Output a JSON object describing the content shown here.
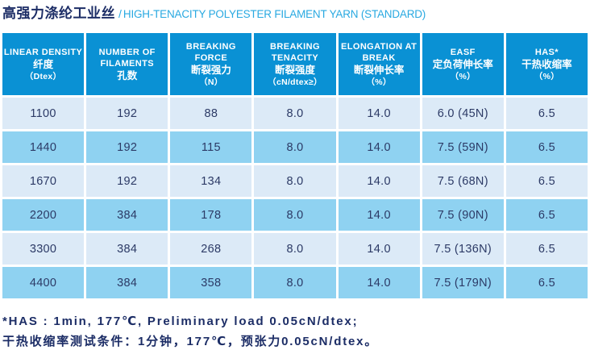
{
  "title": {
    "zh": "高强力涤纶工业丝",
    "separator": "/",
    "en": "HIGH-TENACITY POLYESTER FILAMENT YARN (STANDARD)"
  },
  "colors": {
    "header_bg": "#0a91d4",
    "row_light": "#dceaf7",
    "row_medium": "#8fd2f1",
    "cell_text": "#2c3a66",
    "title_zh": "#1c2d66",
    "title_en": "#29a9e1",
    "footnote": "#1c2d66",
    "page_bg": "#ffffff"
  },
  "table": {
    "headers": [
      {
        "en": "LINEAR DENSITY",
        "zh": "纤度",
        "unit": "（Dtex）"
      },
      {
        "en": "NUMBER OF FILAMENTS",
        "zh": "孔数",
        "unit": ""
      },
      {
        "en": "BREAKING FORCE",
        "zh": "断裂强力",
        "unit": "（N）"
      },
      {
        "en": "BREAKING TENACITY",
        "zh": "断裂强度",
        "unit": "（cN/dtex≥）"
      },
      {
        "en": "ELONGATION AT BREAK",
        "zh": "断裂伸长率",
        "unit": "（%）"
      },
      {
        "en": "EASF",
        "zh": "定负荷伸长率",
        "unit": "（%）"
      },
      {
        "en": "HAS*",
        "zh": "干热收缩率",
        "unit": "（%）"
      }
    ],
    "rows": [
      [
        "1100",
        "192",
        "88",
        "8.0",
        "14.0",
        "6.0 (45N)",
        "6.5"
      ],
      [
        "1440",
        "192",
        "115",
        "8.0",
        "14.0",
        "7.5 (59N)",
        "6.5"
      ],
      [
        "1670",
        "192",
        "134",
        "8.0",
        "14.0",
        "7.5 (68N)",
        "6.5"
      ],
      [
        "2200",
        "384",
        "178",
        "8.0",
        "14.0",
        "7.5 (90N)",
        "6.5"
      ],
      [
        "3300",
        "384",
        "268",
        "8.0",
        "14.0",
        "7.5 (136N)",
        "6.5"
      ],
      [
        "4400",
        "384",
        "358",
        "8.0",
        "14.0",
        "7.5 (179N)",
        "6.5"
      ]
    ]
  },
  "footnotes": [
    "*HAS : 1min, 177℃, Preliminary load 0.05cN/dtex;",
    "干热收缩率测试条件：1分钟，177℃，预张力0.05cN/dtex。"
  ]
}
